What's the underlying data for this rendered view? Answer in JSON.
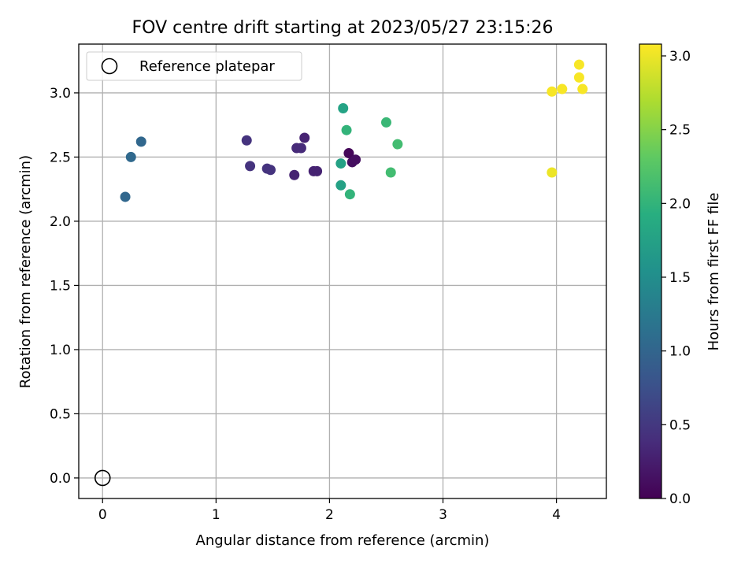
{
  "chart_data": {
    "type": "scatter",
    "title": "FOV centre drift starting at 2023/05/27 23:15:26",
    "xlabel": "Angular distance from reference (arcmin)",
    "ylabel": "Rotation from reference (arcmin)",
    "xlim": [
      -0.21,
      4.44
    ],
    "ylim": [
      -0.16,
      3.38
    ],
    "xticks": [
      0,
      1,
      2,
      3,
      4
    ],
    "yticks": [
      "0.0",
      "0.5",
      "1.0",
      "1.5",
      "2.0",
      "2.5",
      "3.0"
    ],
    "grid": true,
    "legend": {
      "position": "top-left",
      "entries": [
        "Reference platepar"
      ]
    },
    "reference_point": {
      "x": 0,
      "y": 0
    },
    "colorbar": {
      "label": "Hours from first FF file",
      "colormap": "viridis",
      "range": [
        0.0,
        3.08
      ],
      "ticks": [
        "0.0",
        "0.5",
        "1.0",
        "1.5",
        "2.0",
        "2.5",
        "3.0"
      ]
    },
    "points": [
      {
        "x": 0.2,
        "y": 2.19,
        "c": 1.02
      },
      {
        "x": 0.25,
        "y": 2.5,
        "c": 1.05
      },
      {
        "x": 0.34,
        "y": 2.62,
        "c": 1.02
      },
      {
        "x": 1.27,
        "y": 2.63,
        "c": 0.45
      },
      {
        "x": 1.3,
        "y": 2.43,
        "c": 0.45
      },
      {
        "x": 1.45,
        "y": 2.41,
        "c": 0.45
      },
      {
        "x": 1.48,
        "y": 2.4,
        "c": 0.45
      },
      {
        "x": 1.69,
        "y": 2.36,
        "c": 0.3
      },
      {
        "x": 1.71,
        "y": 2.57,
        "c": 0.37
      },
      {
        "x": 1.75,
        "y": 2.57,
        "c": 0.37
      },
      {
        "x": 1.78,
        "y": 2.65,
        "c": 0.3
      },
      {
        "x": 1.86,
        "y": 2.39,
        "c": 0.3
      },
      {
        "x": 1.89,
        "y": 2.39,
        "c": 0.3
      },
      {
        "x": 2.17,
        "y": 2.53,
        "c": 0.05
      },
      {
        "x": 2.2,
        "y": 2.46,
        "c": 0.12
      },
      {
        "x": 2.23,
        "y": 2.48,
        "c": 0.12
      },
      {
        "x": 2.1,
        "y": 2.45,
        "c": 1.75
      },
      {
        "x": 2.1,
        "y": 2.28,
        "c": 1.75
      },
      {
        "x": 2.12,
        "y": 2.88,
        "c": 1.78
      },
      {
        "x": 2.15,
        "y": 2.71,
        "c": 2.0
      },
      {
        "x": 2.18,
        "y": 2.21,
        "c": 2.0
      },
      {
        "x": 2.5,
        "y": 2.77,
        "c": 2.05
      },
      {
        "x": 2.54,
        "y": 2.38,
        "c": 2.12
      },
      {
        "x": 2.6,
        "y": 2.6,
        "c": 2.12
      },
      {
        "x": 3.96,
        "y": 3.01,
        "c": 3.05
      },
      {
        "x": 3.96,
        "y": 2.38,
        "c": 3.0
      },
      {
        "x": 4.05,
        "y": 3.03,
        "c": 3.05
      },
      {
        "x": 4.2,
        "y": 3.22,
        "c": 3.05
      },
      {
        "x": 4.2,
        "y": 3.12,
        "c": 3.05
      },
      {
        "x": 4.23,
        "y": 3.03,
        "c": 3.05
      }
    ]
  }
}
